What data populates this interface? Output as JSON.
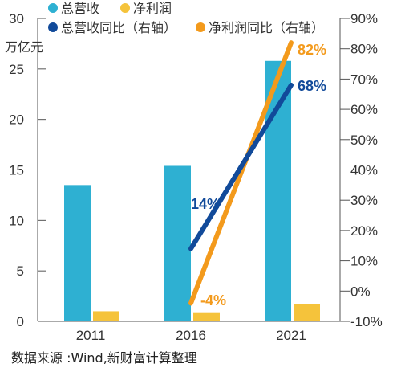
{
  "chart_data": {
    "type": "bar",
    "categories": [
      "2011",
      "2016",
      "2021"
    ],
    "left_axis": {
      "unit": "万亿元",
      "ylim": [
        0,
        30
      ],
      "ticks": [
        "0",
        "5",
        "10",
        "15",
        "20",
        "25",
        "30"
      ]
    },
    "right_axis": {
      "ylim": [
        -10,
        90
      ],
      "ticks": [
        "-10%",
        "0%",
        "10%",
        "20%",
        "30%",
        "40%",
        "50%",
        "60%",
        "70%",
        "80%",
        "90%"
      ]
    },
    "bar_series": [
      {
        "name": "总营收",
        "color": "#2eb0d2",
        "values": [
          13.5,
          15.4,
          25.8
        ]
      },
      {
        "name": "净利润",
        "color": "#f5c33b",
        "values": [
          1.0,
          0.9,
          1.7
        ]
      }
    ],
    "line_series": [
      {
        "name": "总营收同比（右轴）",
        "color": "#114a9a",
        "points": {
          "2016": 14,
          "2021": 68
        },
        "labels": {
          "2016": "14%",
          "2021": "68%"
        }
      },
      {
        "name": "净利润同比（右轴）",
        "color": "#f39a1c",
        "points": {
          "2016": -4,
          "2021": 82
        },
        "labels": {
          "2016": "-4%",
          "2021": "82%"
        }
      }
    ],
    "legend_placement": "top"
  },
  "source": "数据来源 :Wind,新财富计算整理"
}
